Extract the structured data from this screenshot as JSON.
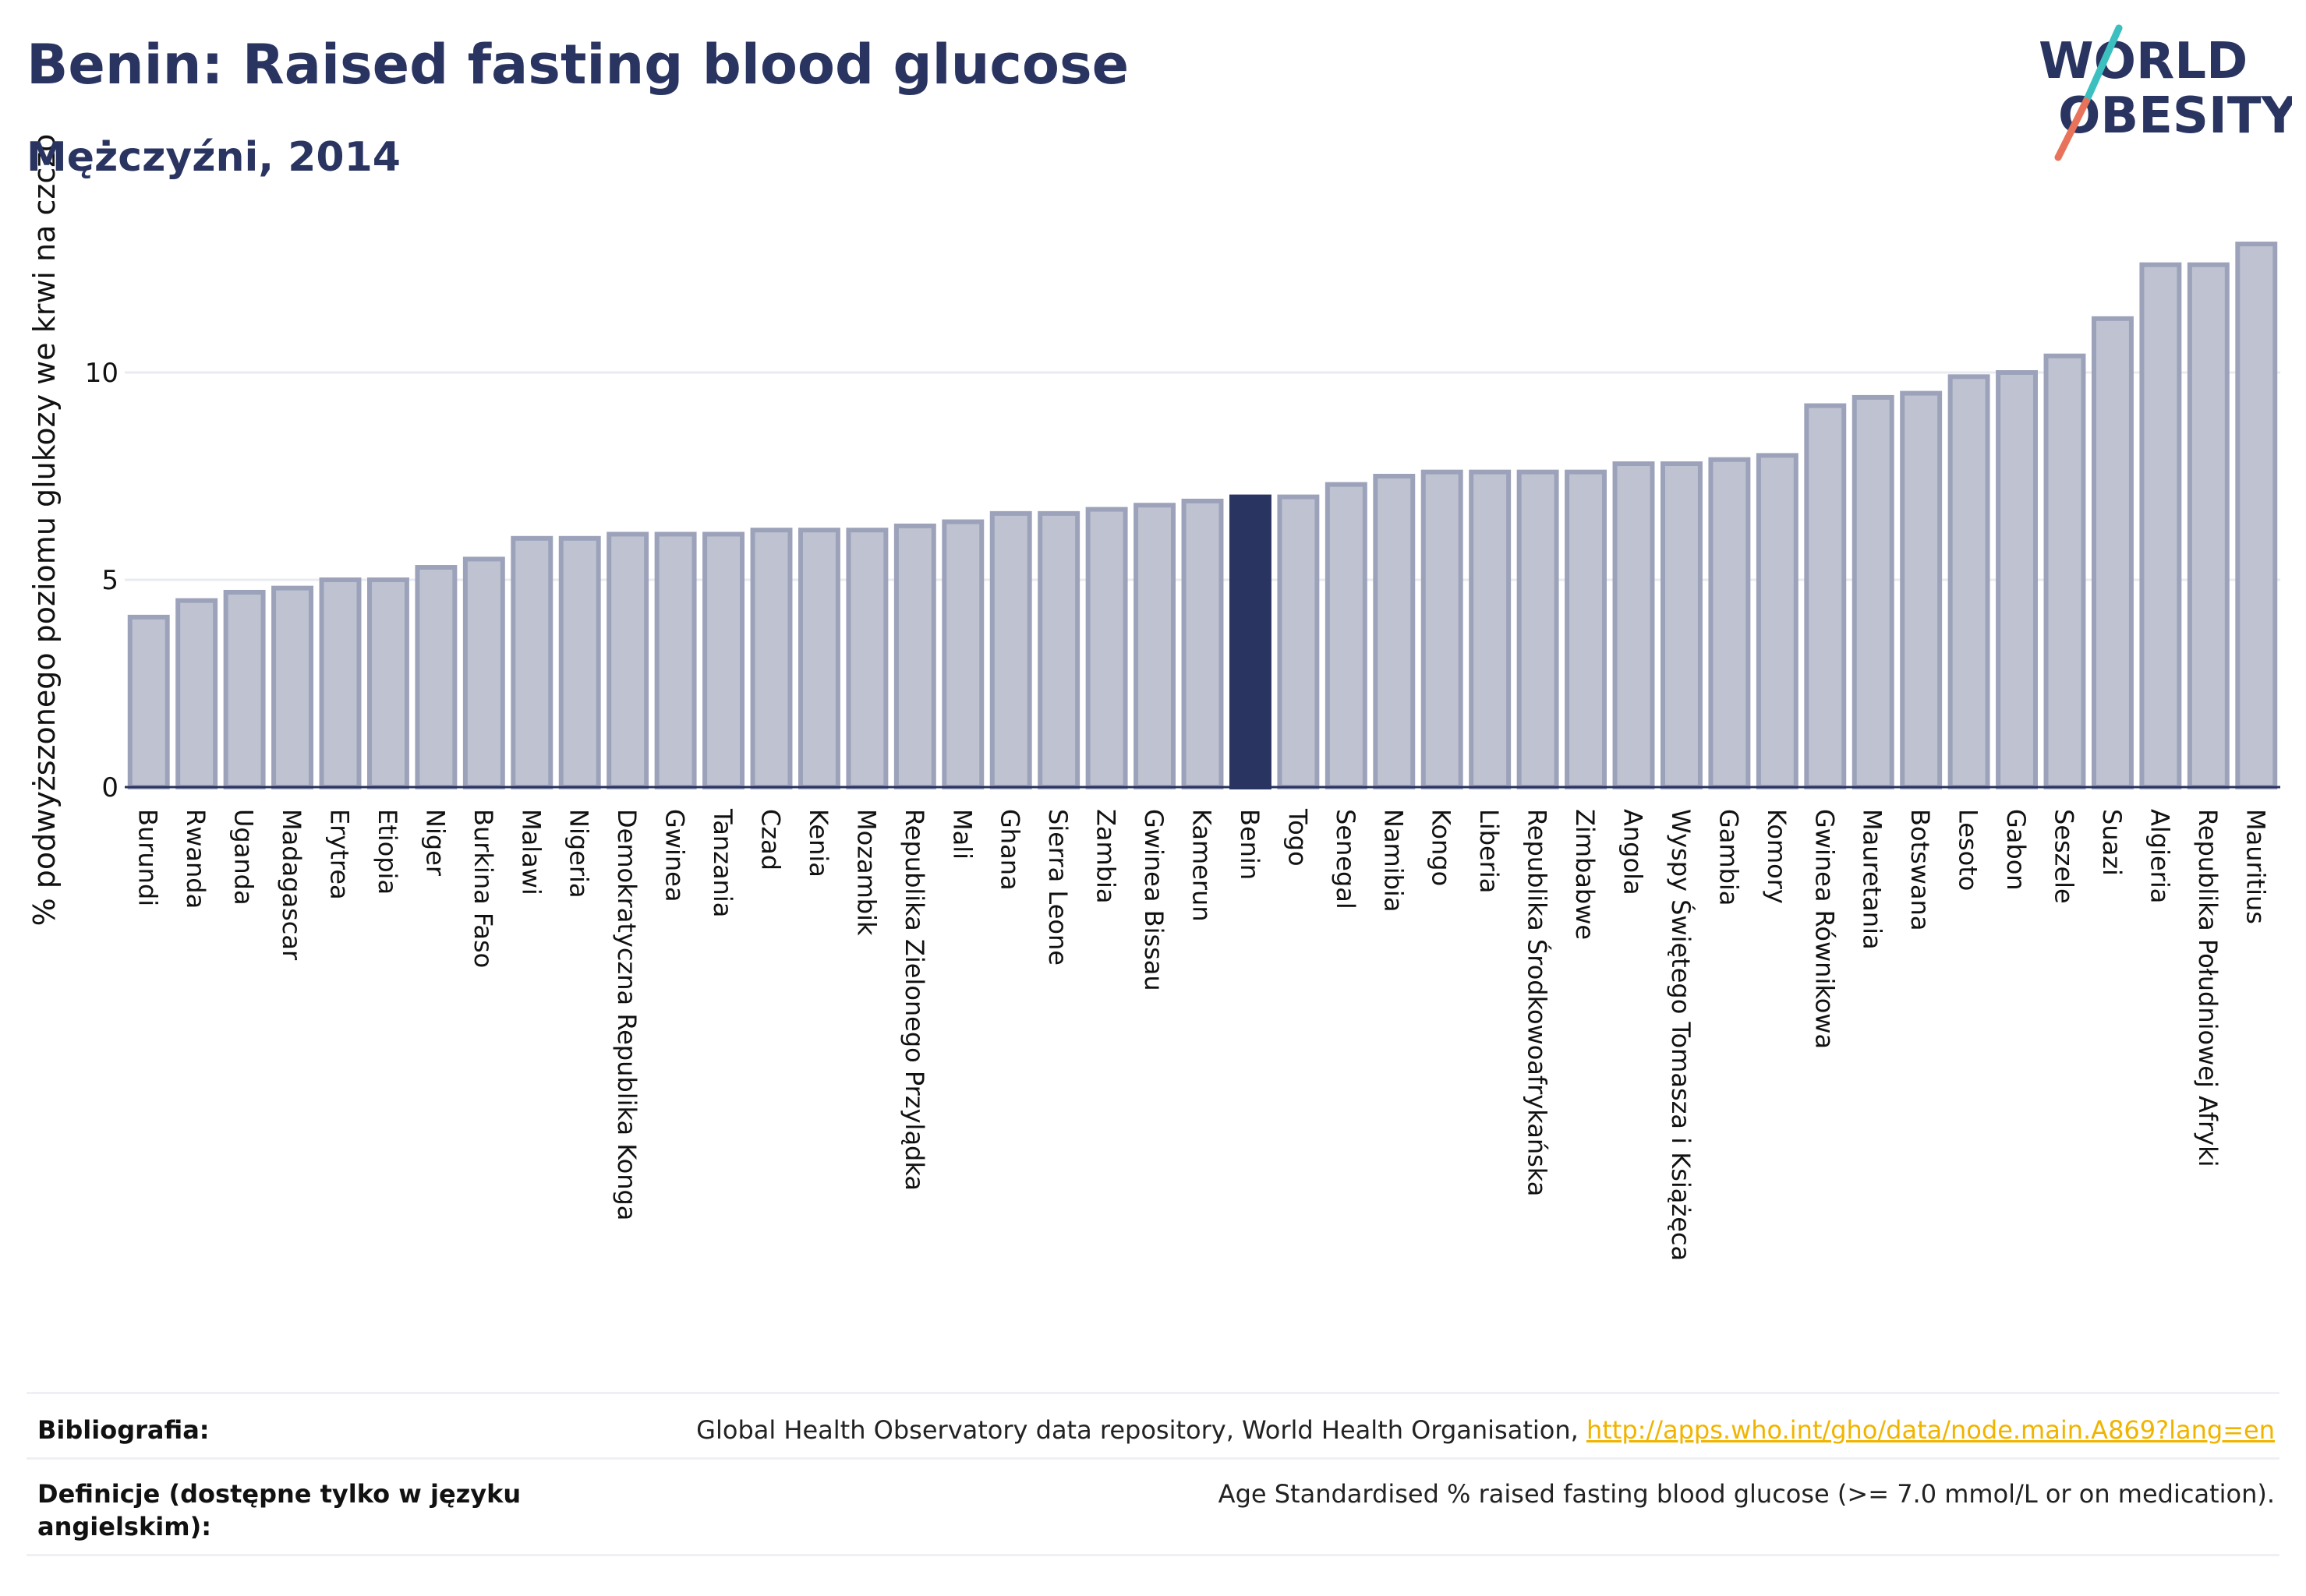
{
  "header": {
    "title": "Benin: Raised fasting blood glucose",
    "subtitle": "Mężczyźni, 2014"
  },
  "logo": {
    "line1": "WORLD",
    "line2": "OBESITY"
  },
  "colors": {
    "bar": "#bfc3d1",
    "bar_outline": "#9ca2ba",
    "highlight": "#2a3461",
    "text": "#2a3461",
    "grid": "#e9ebf1",
    "link": "#f0b400",
    "logo_teal": "#3bbfbf",
    "logo_coral": "#e8735a"
  },
  "chart_data": {
    "type": "bar",
    "ylabel": "% podwyższonego poziomu glukozy we krwi na czczo",
    "xlabel": "",
    "ylim": [
      0,
      14
    ],
    "yticks": [
      0,
      5,
      10
    ],
    "highlight": "Benin",
    "grid": true,
    "categories": [
      "Burundi",
      "Rwanda",
      "Uganda",
      "Madagascar",
      "Erytrea",
      "Etiopia",
      "Niger",
      "Burkina Faso",
      "Malawi",
      "Nigeria",
      "Demokratyczna Republika Konga",
      "Gwinea",
      "Tanzania",
      "Czad",
      "Kenia",
      "Mozambik",
      "Republika Zielonego Przylądka",
      "Mali",
      "Ghana",
      "Sierra Leone",
      "Zambia",
      "Gwinea Bissau",
      "Kamerun",
      "Benin",
      "Togo",
      "Senegal",
      "Namibia",
      "Kongo",
      "Liberia",
      "Republika Środkowoafrykańska",
      "Zimbabwe",
      "Angola",
      "Wyspy Świętego Tomasza i Książęca",
      "Gambia",
      "Komory",
      "Gwinea Równikowa",
      "Mauretania",
      "Botswana",
      "Lesoto",
      "Gabon",
      "Seszele",
      "Suazi",
      "Algieria",
      "Republika Południowej Afryki",
      "Mauritius"
    ],
    "values": [
      4.1,
      4.5,
      4.7,
      4.8,
      5.0,
      5.0,
      5.3,
      5.5,
      6.0,
      6.0,
      6.1,
      6.1,
      6.1,
      6.2,
      6.2,
      6.2,
      6.3,
      6.4,
      6.6,
      6.6,
      6.7,
      6.8,
      6.9,
      7.0,
      7.0,
      7.3,
      7.5,
      7.6,
      7.6,
      7.6,
      7.6,
      7.8,
      7.8,
      7.9,
      8.0,
      9.2,
      9.4,
      9.5,
      9.9,
      10.0,
      10.4,
      11.3,
      12.6,
      12.6,
      13.1
    ]
  },
  "footer": {
    "bib_label": "Bibliografia:",
    "bib_text": "Global Health Observatory data repository, World Health Organisation, ",
    "bib_link": "http://apps.who.int/gho/data/node.main.A869?lang=en",
    "def_label": "Definicje (dostępne tylko w języku angielskim):",
    "def_text": "Age Standardised % raised fasting blood glucose (>= 7.0 mmol/L or on medication)."
  }
}
